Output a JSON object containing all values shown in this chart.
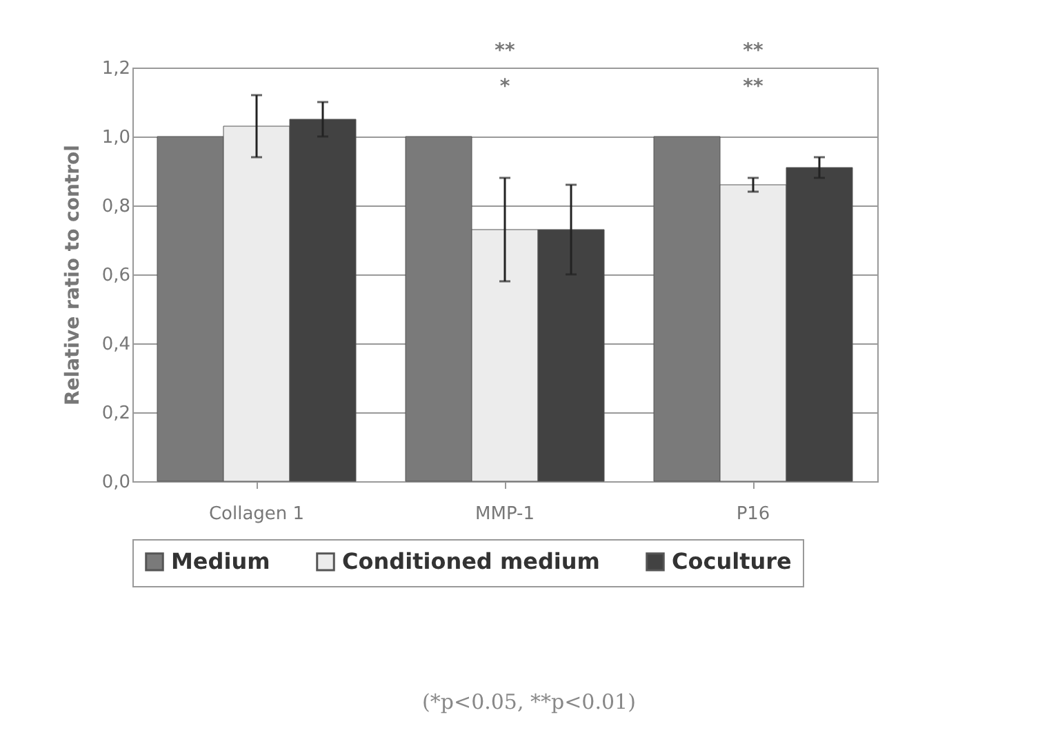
{
  "chart_data": {
    "type": "bar",
    "ylabel": "Relative ratio to control",
    "categories": [
      "Collagen 1",
      "MMP-1",
      "P16"
    ],
    "series": [
      {
        "name": "Medium",
        "color": "#7a7a7a",
        "values": [
          1.0,
          1.0,
          1.0
        ]
      },
      {
        "name": "Conditioned medium",
        "color": "#ececec",
        "values": [
          1.03,
          0.73,
          0.86
        ],
        "errors": [
          0.09,
          0.15,
          0.02
        ]
      },
      {
        "name": "Coculture",
        "color": "#424242",
        "values": [
          1.05,
          0.73,
          0.91
        ],
        "errors": [
          0.05,
          0.13,
          0.03
        ]
      }
    ],
    "ylim": [
      0,
      1.2
    ],
    "yticks": [
      {
        "value": 0,
        "label": "0,0"
      },
      {
        "value": 0.2,
        "label": "0,2"
      },
      {
        "value": 0.4,
        "label": "0,4"
      },
      {
        "value": 0.6,
        "label": "0,6"
      },
      {
        "value": 0.8,
        "label": "0,8"
      },
      {
        "value": 1.0,
        "label": "1,0"
      },
      {
        "value": 1.2,
        "label": "1,2"
      }
    ],
    "grid": "y",
    "legend": "bottom",
    "annotations": [
      "*",
      "**",
      "**",
      "**",
      "(*p<0.05, **p<0.01)"
    ]
  }
}
